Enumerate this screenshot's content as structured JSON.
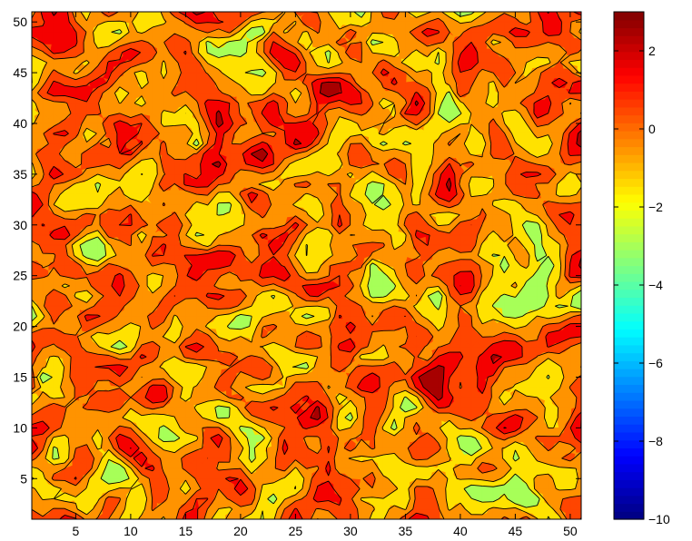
{
  "chart_data": {
    "type": "heatmap",
    "subtype": "filled-contour",
    "title": "",
    "xlabel": "",
    "ylabel": "",
    "xlim": [
      1,
      51
    ],
    "ylim": [
      1,
      51
    ],
    "x_ticks": [
      5,
      10,
      15,
      20,
      25,
      30,
      35,
      40,
      45,
      50
    ],
    "y_ticks": [
      5,
      10,
      15,
      20,
      25,
      30,
      35,
      40,
      45,
      50
    ],
    "grid_size": [
      51,
      51
    ],
    "value_range": [
      -10,
      3
    ],
    "dominant_value_range": [
      -2,
      2
    ],
    "contour_levels": [
      -8,
      -6,
      -4,
      -2,
      -1,
      0,
      1,
      2
    ],
    "colormap": "jet",
    "colorbar": {
      "position": "right",
      "range": [
        -10,
        3
      ],
      "ticks": [
        -10,
        -8,
        -6,
        -4,
        -2,
        0,
        2
      ],
      "tick_labels": [
        "−10",
        "−8",
        "−6",
        "−4",
        "−2",
        "0",
        "2"
      ]
    },
    "grid": false
  }
}
